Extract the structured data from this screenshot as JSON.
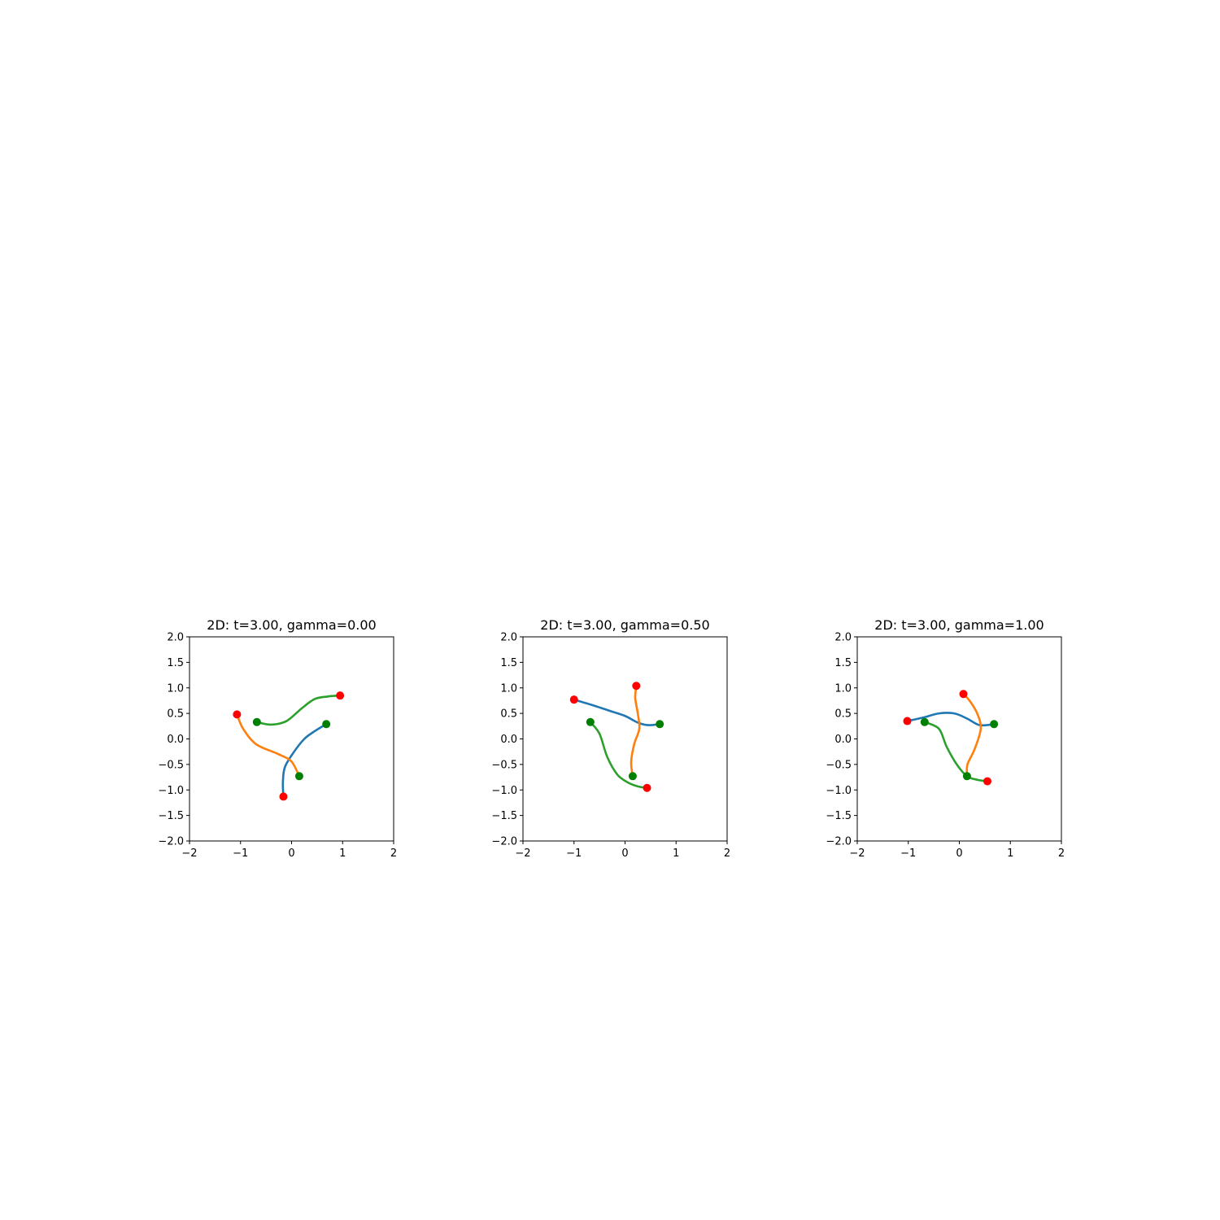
{
  "colors": {
    "series": [
      "#1f77b4",
      "#ff7f0e",
      "#2ca02c"
    ],
    "start_marker": "#008000",
    "end_marker": "#ff0000"
  },
  "chart_data": [
    {
      "type": "line",
      "title": "2D: t=3.00, gamma=0.00",
      "xlim": [
        -2,
        2
      ],
      "ylim": [
        -2,
        2
      ],
      "xticks": [
        "−2",
        "−1",
        "0",
        "1",
        "2"
      ],
      "yticks": [
        "−2.0",
        "−1.5",
        "−1.0",
        "−0.5",
        "0.0",
        "0.5",
        "1.0",
        "1.5",
        "2.0"
      ],
      "xtick_values": [
        -2,
        -1,
        0,
        1,
        2
      ],
      "ytick_values": [
        -2.0,
        -1.5,
        -1.0,
        -0.5,
        0.0,
        0.5,
        1.0,
        1.5,
        2.0
      ],
      "grid": false,
      "series": [
        {
          "x": [
            0.68,
            0.45,
            0.25,
            0.05,
            -0.13,
            -0.17,
            -0.16
          ],
          "y": [
            0.29,
            0.15,
            0.0,
            -0.25,
            -0.55,
            -0.85,
            -1.13
          ]
        },
        {
          "x": [
            0.15,
            0.05,
            -0.05,
            -0.3,
            -0.7,
            -0.95,
            -1.07
          ],
          "y": [
            -0.73,
            -0.52,
            -0.4,
            -0.28,
            -0.1,
            0.2,
            0.48
          ]
        },
        {
          "x": [
            -0.68,
            -0.4,
            -0.1,
            0.2,
            0.45,
            0.7,
            0.95
          ],
          "y": [
            0.33,
            0.28,
            0.35,
            0.6,
            0.78,
            0.83,
            0.85
          ]
        }
      ],
      "start_points": {
        "x": [
          0.68,
          0.15,
          -0.68
        ],
        "y": [
          0.29,
          -0.73,
          0.33
        ]
      },
      "end_points": {
        "x": [
          -0.16,
          -1.07,
          0.95
        ],
        "y": [
          -1.13,
          0.48,
          0.85
        ]
      }
    },
    {
      "type": "line",
      "title": "2D: t=3.00, gamma=0.50",
      "xlim": [
        -2,
        2
      ],
      "ylim": [
        -2,
        2
      ],
      "xticks": [
        "−2",
        "−1",
        "0",
        "1",
        "2"
      ],
      "yticks": [
        "−2.0",
        "−1.5",
        "−1.0",
        "−0.5",
        "0.0",
        "0.5",
        "1.0",
        "1.5",
        "2.0"
      ],
      "xtick_values": [
        -2,
        -1,
        0,
        1,
        2
      ],
      "ytick_values": [
        -2.0,
        -1.5,
        -1.0,
        -0.5,
        0.0,
        0.5,
        1.0,
        1.5,
        2.0
      ],
      "grid": false,
      "series": [
        {
          "x": [
            0.68,
            0.45,
            0.25,
            0.0,
            -0.3,
            -0.6,
            -1.0
          ],
          "y": [
            0.29,
            0.27,
            0.32,
            0.45,
            0.55,
            0.65,
            0.77
          ]
        },
        {
          "x": [
            0.15,
            0.12,
            0.18,
            0.28,
            0.25,
            0.2,
            0.22
          ],
          "y": [
            -0.73,
            -0.45,
            -0.1,
            0.2,
            0.5,
            0.8,
            1.04
          ]
        },
        {
          "x": [
            -0.68,
            -0.5,
            -0.35,
            -0.15,
            0.05,
            0.25,
            0.43
          ],
          "y": [
            0.33,
            0.1,
            -0.35,
            -0.7,
            -0.85,
            -0.93,
            -0.96
          ]
        }
      ],
      "start_points": {
        "x": [
          0.68,
          0.15,
          -0.68
        ],
        "y": [
          0.29,
          -0.73,
          0.33
        ]
      },
      "end_points": {
        "x": [
          -1.0,
          0.22,
          0.43
        ],
        "y": [
          0.77,
          1.04,
          -0.96
        ]
      }
    },
    {
      "type": "line",
      "title": "2D: t=3.00, gamma=1.00",
      "xlim": [
        -2,
        2
      ],
      "ylim": [
        -2,
        2
      ],
      "xticks": [
        "−2",
        "−1",
        "0",
        "1",
        "2"
      ],
      "yticks": [
        "−2.0",
        "−1.5",
        "−1.0",
        "−0.5",
        "0.0",
        "0.5",
        "1.0",
        "1.5",
        "2.0"
      ],
      "xtick_values": [
        -2,
        -1,
        0,
        1,
        2
      ],
      "ytick_values": [
        -2.0,
        -1.5,
        -1.0,
        -0.5,
        0.0,
        0.5,
        1.0,
        1.5,
        2.0
      ],
      "grid": false,
      "series": [
        {
          "x": [
            0.68,
            0.4,
            0.15,
            -0.1,
            -0.4,
            -0.7,
            -1.02
          ],
          "y": [
            0.29,
            0.27,
            0.4,
            0.5,
            0.5,
            0.42,
            0.35
          ]
        },
        {
          "x": [
            0.15,
            0.16,
            0.3,
            0.42,
            0.35,
            0.2,
            0.08
          ],
          "y": [
            -0.73,
            -0.5,
            -0.2,
            0.2,
            0.5,
            0.75,
            0.88
          ]
        },
        {
          "x": [
            -0.68,
            -0.4,
            -0.25,
            -0.05,
            0.15,
            0.35,
            0.55
          ],
          "y": [
            0.33,
            0.2,
            -0.15,
            -0.5,
            -0.73,
            -0.8,
            -0.83
          ]
        }
      ],
      "start_points": {
        "x": [
          0.68,
          0.15,
          -0.68
        ],
        "y": [
          0.29,
          -0.73,
          0.33
        ]
      },
      "end_points": {
        "x": [
          -1.02,
          0.08,
          0.55
        ],
        "y": [
          0.35,
          0.88,
          -0.83
        ]
      }
    }
  ]
}
